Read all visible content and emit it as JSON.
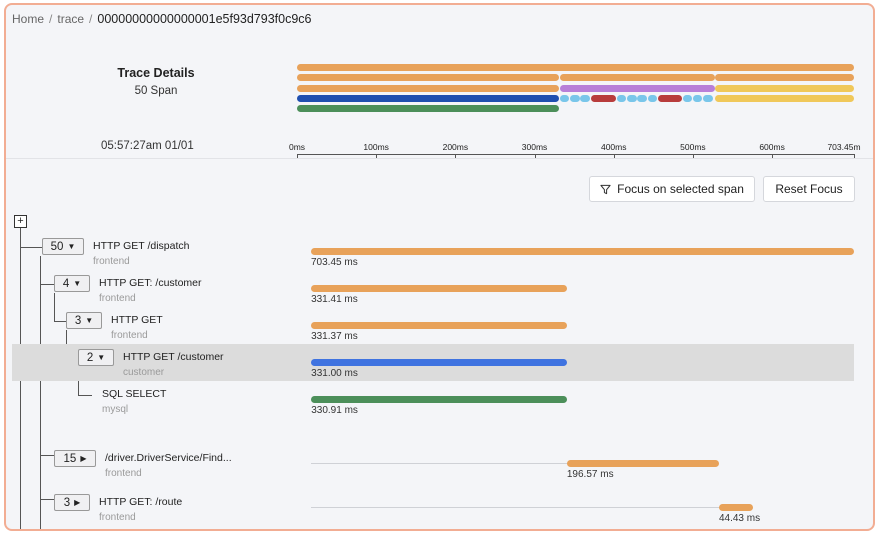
{
  "breadcrumb": {
    "home": "Home",
    "trace": "trace",
    "trace_id": "00000000000000001e5f93d793f0c9c6"
  },
  "summary": {
    "title": "Trace Details",
    "span_count": "50 Span",
    "start_time": "05:57:27am 01/01"
  },
  "timeline": {
    "total_ms": 703.45,
    "ticks": [
      "0ms",
      "100ms",
      "200ms",
      "300ms",
      "400ms",
      "500ms",
      "600ms",
      "703.45m"
    ]
  },
  "colors": {
    "orange": "#e8a25a",
    "purple": "#b87fd8",
    "blue": "#3f73e0",
    "dark_blue": "#1f4fb0",
    "green": "#4c8f5a",
    "light_blue": "#79c6ea",
    "red": "#b83c3c",
    "yellow": "#f0c85a",
    "selected_row": "#dcdcdc"
  },
  "toolbar": {
    "focus_label": "Focus on selected span",
    "reset_label": "Reset Focus",
    "filter_icon": "filter-icon",
    "expand_all_icon": "plus-square-icon",
    "expand_all_symbol": "+"
  },
  "spans": [
    {
      "count": "50",
      "expanded": true,
      "name": "HTTP GET /dispatch",
      "service": "frontend",
      "start_ms": 0,
      "duration_ms": 703.45,
      "duration": "703.45 ms",
      "color": "#e8a25a",
      "selected": false
    },
    {
      "count": "4",
      "expanded": true,
      "name": "HTTP GET: /customer",
      "service": "frontend",
      "start_ms": 0.1,
      "duration_ms": 331.41,
      "duration": "331.41 ms",
      "color": "#e8a25a",
      "selected": false
    },
    {
      "count": "3",
      "expanded": true,
      "name": "HTTP GET",
      "service": "frontend",
      "start_ms": 0.1,
      "duration_ms": 331.37,
      "duration": "331.37 ms",
      "color": "#e8a25a",
      "selected": false
    },
    {
      "count": "2",
      "expanded": true,
      "name": "HTTP GET /customer",
      "service": "customer",
      "start_ms": 0.2,
      "duration_ms": 331.0,
      "duration": "331.00 ms",
      "color": "#3f73e0",
      "selected": true
    },
    {
      "count": "",
      "expanded": false,
      "name": "SQL SELECT",
      "service": "mysql",
      "start_ms": 0.3,
      "duration_ms": 330.91,
      "duration": "330.91 ms",
      "color": "#4c8f5a",
      "selected": false
    },
    {
      "count": "15",
      "expanded": false,
      "name": "/driver.DriverService/Find...",
      "service": "frontend",
      "start_ms": 331.5,
      "duration_ms": 196.57,
      "duration": "196.57 ms",
      "color": "#e8a25a",
      "selected": false
    },
    {
      "count": "3",
      "expanded": false,
      "name": "HTTP GET: /route",
      "service": "frontend",
      "start_ms": 528.5,
      "duration_ms": 44.43,
      "duration": "44.43 ms",
      "color": "#e8a25a",
      "selected": false
    }
  ]
}
